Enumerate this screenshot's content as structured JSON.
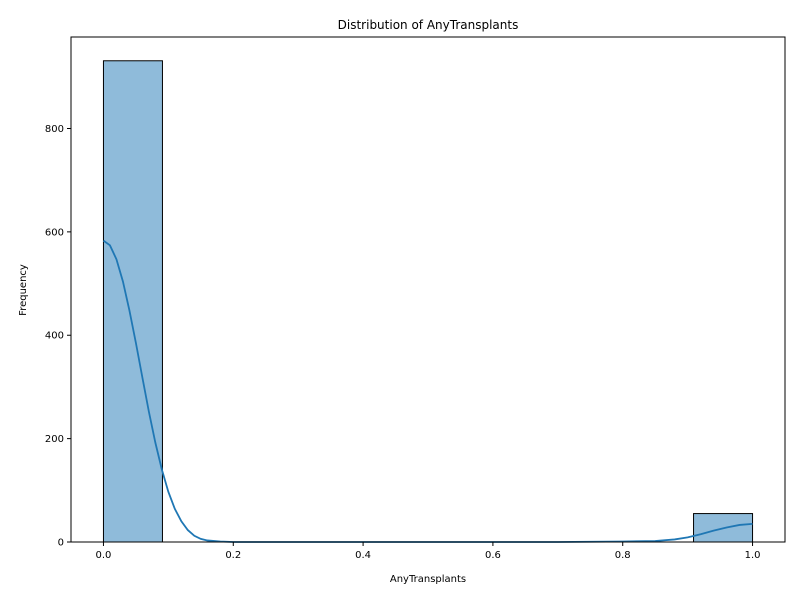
{
  "chart_data": {
    "type": "bar",
    "title": "Distribution of AnyTransplants",
    "xlabel": "AnyTransplants",
    "ylabel": "Frequency",
    "xlim": [
      -0.05,
      1.05
    ],
    "ylim": [
      0,
      977
    ],
    "x_ticks": [
      0.0,
      0.2,
      0.4,
      0.6,
      0.8,
      1.0
    ],
    "x_tick_labels": [
      "0.0",
      "0.2",
      "0.4",
      "0.6",
      "0.8",
      "1.0"
    ],
    "y_ticks": [
      0,
      200,
      400,
      600,
      800
    ],
    "y_tick_labels": [
      "0",
      "200",
      "400",
      "600",
      "800"
    ],
    "bins": [
      {
        "x0": 0.0,
        "x1": 0.0909,
        "count": 931
      },
      {
        "x0": 0.0909,
        "x1": 0.1818,
        "count": 0
      },
      {
        "x0": 0.1818,
        "x1": 0.2727,
        "count": 0
      },
      {
        "x0": 0.2727,
        "x1": 0.3636,
        "count": 0
      },
      {
        "x0": 0.3636,
        "x1": 0.4545,
        "count": 0
      },
      {
        "x0": 0.4545,
        "x1": 0.5455,
        "count": 0
      },
      {
        "x0": 0.5455,
        "x1": 0.6364,
        "count": 0
      },
      {
        "x0": 0.6364,
        "x1": 0.7273,
        "count": 0
      },
      {
        "x0": 0.7273,
        "x1": 0.8182,
        "count": 0
      },
      {
        "x0": 0.8182,
        "x1": 0.9091,
        "count": 0
      },
      {
        "x0": 0.9091,
        "x1": 1.0,
        "count": 55
      }
    ],
    "kde": {
      "x": [
        0.0,
        0.01,
        0.02,
        0.03,
        0.04,
        0.05,
        0.06,
        0.07,
        0.08,
        0.09,
        0.1,
        0.11,
        0.12,
        0.13,
        0.14,
        0.15,
        0.16,
        0.18,
        0.2,
        0.25,
        0.3,
        0.4,
        0.5,
        0.6,
        0.7,
        0.8,
        0.85,
        0.88,
        0.9,
        0.92,
        0.94,
        0.96,
        0.98,
        1.0
      ],
      "y": [
        583,
        574,
        547,
        504,
        448,
        385,
        318,
        252,
        192,
        140,
        97,
        64,
        40,
        23,
        12,
        6,
        3,
        1,
        0,
        0,
        0,
        0,
        0,
        0,
        0,
        1,
        2,
        5,
        9,
        15,
        22,
        28,
        33,
        35
      ]
    },
    "bar_fill": "#8fbbda",
    "bar_edge": "#000000",
    "kde_color": "#1f77b4",
    "grid": false,
    "legend": "none"
  }
}
